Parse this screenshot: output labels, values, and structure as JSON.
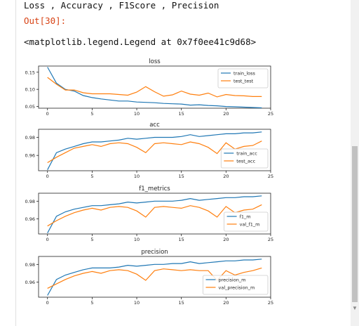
{
  "cell": {
    "markdown_text": "Loss , Accuracy , F1Score , Precision",
    "out_prompt": "Out[30]:",
    "output_text": "<matplotlib.legend.Legend at 0x7f0ee41c9d68>"
  },
  "chart_data": [
    {
      "type": "line",
      "title": "loss",
      "x": [
        0,
        1,
        2,
        3,
        4,
        5,
        6,
        7,
        8,
        9,
        10,
        11,
        12,
        13,
        14,
        15,
        16,
        17,
        18,
        19,
        20,
        21,
        22,
        23,
        24
      ],
      "series": [
        {
          "name": "train_loss",
          "color": "#1f77b4",
          "values": [
            0.165,
            0.118,
            0.1,
            0.095,
            0.082,
            0.076,
            0.072,
            0.069,
            0.066,
            0.066,
            0.063,
            0.062,
            0.061,
            0.059,
            0.058,
            0.057,
            0.054,
            0.055,
            0.053,
            0.052,
            0.05,
            0.049,
            0.048,
            0.047,
            0.046
          ]
        },
        {
          "name": "test_test",
          "color": "#ff7f0e",
          "values": [
            0.135,
            0.115,
            0.098,
            0.098,
            0.09,
            0.087,
            0.087,
            0.087,
            0.085,
            0.083,
            0.092,
            0.108,
            0.093,
            0.08,
            0.084,
            0.095,
            0.086,
            0.083,
            0.089,
            0.078,
            0.085,
            0.082,
            0.081,
            0.079,
            0.079
          ]
        }
      ],
      "ylim": [
        0.045,
        0.168
      ],
      "yticks": [
        "0.15",
        "0.10",
        "0.05"
      ],
      "ytick_values": [
        0.15,
        0.1,
        0.05
      ],
      "xticks": [
        "0",
        "5",
        "10",
        "15",
        "20",
        "25"
      ],
      "xlim": [
        -1,
        25
      ],
      "legend": "upper right"
    },
    {
      "type": "line",
      "title": "acc",
      "x": [
        0,
        1,
        2,
        3,
        4,
        5,
        6,
        7,
        8,
        9,
        10,
        11,
        12,
        13,
        14,
        15,
        16,
        17,
        18,
        19,
        20,
        21,
        22,
        23,
        24
      ],
      "series": [
        {
          "name": "train_acc",
          "color": "#1f77b4",
          "values": [
            0.944,
            0.963,
            0.967,
            0.97,
            0.973,
            0.975,
            0.975,
            0.976,
            0.977,
            0.979,
            0.978,
            0.979,
            0.98,
            0.98,
            0.98,
            0.981,
            0.983,
            0.981,
            0.982,
            0.983,
            0.984,
            0.984,
            0.985,
            0.985,
            0.986
          ]
        },
        {
          "name": "test_acc",
          "color": "#ff7f0e",
          "values": [
            0.952,
            0.958,
            0.963,
            0.968,
            0.97,
            0.972,
            0.97,
            0.973,
            0.974,
            0.973,
            0.969,
            0.963,
            0.973,
            0.974,
            0.973,
            0.972,
            0.975,
            0.973,
            0.969,
            0.962,
            0.974,
            0.967,
            0.97,
            0.971,
            0.976
          ]
        }
      ],
      "ylim": [
        0.943,
        0.989
      ],
      "yticks": [
        "0.98",
        "0.96"
      ],
      "ytick_values": [
        0.98,
        0.96
      ],
      "xticks": [
        "0",
        "5",
        "10",
        "15",
        "20",
        "25"
      ],
      "xlim": [
        -1,
        25
      ],
      "legend": "lower right"
    },
    {
      "type": "line",
      "title": "f1_metrics",
      "x": [
        0,
        1,
        2,
        3,
        4,
        5,
        6,
        7,
        8,
        9,
        10,
        11,
        12,
        13,
        14,
        15,
        16,
        17,
        18,
        19,
        20,
        21,
        22,
        23,
        24
      ],
      "series": [
        {
          "name": "f1_m",
          "color": "#1f77b4",
          "values": [
            0.944,
            0.963,
            0.968,
            0.971,
            0.973,
            0.975,
            0.975,
            0.976,
            0.977,
            0.979,
            0.978,
            0.979,
            0.98,
            0.98,
            0.98,
            0.981,
            0.983,
            0.981,
            0.982,
            0.983,
            0.984,
            0.984,
            0.985,
            0.985,
            0.986
          ]
        },
        {
          "name": "val_f1_m",
          "color": "#ff7f0e",
          "values": [
            0.952,
            0.958,
            0.963,
            0.967,
            0.97,
            0.972,
            0.97,
            0.973,
            0.974,
            0.973,
            0.969,
            0.962,
            0.973,
            0.974,
            0.973,
            0.972,
            0.975,
            0.973,
            0.969,
            0.962,
            0.974,
            0.967,
            0.97,
            0.971,
            0.976
          ]
        }
      ],
      "ylim": [
        0.943,
        0.989
      ],
      "yticks": [
        "0.98",
        "0.96"
      ],
      "ytick_values": [
        0.98,
        0.96
      ],
      "xticks": [
        "0",
        "5",
        "10",
        "15",
        "20",
        "25"
      ],
      "xlim": [
        -1,
        25
      ],
      "legend": "lower right"
    },
    {
      "type": "line",
      "title": "precision",
      "x": [
        0,
        1,
        2,
        3,
        4,
        5,
        6,
        7,
        8,
        9,
        10,
        11,
        12,
        13,
        14,
        15,
        16,
        17,
        18,
        19,
        20,
        21,
        22,
        23,
        24
      ],
      "series": [
        {
          "name": "precision_m",
          "color": "#1f77b4",
          "values": [
            0.945,
            0.963,
            0.968,
            0.971,
            0.974,
            0.976,
            0.976,
            0.976,
            0.977,
            0.979,
            0.978,
            0.979,
            0.98,
            0.98,
            0.981,
            0.981,
            0.983,
            0.981,
            0.982,
            0.983,
            0.984,
            0.984,
            0.985,
            0.985,
            0.986
          ]
        },
        {
          "name": "val_precision_m",
          "color": "#ff7f0e",
          "values": [
            0.953,
            0.958,
            0.963,
            0.967,
            0.97,
            0.972,
            0.97,
            0.973,
            0.974,
            0.973,
            0.969,
            0.962,
            0.973,
            0.975,
            0.974,
            0.973,
            0.974,
            0.973,
            0.973,
            0.962,
            0.973,
            0.968,
            0.971,
            0.973,
            0.976
          ]
        }
      ],
      "ylim": [
        0.943,
        0.989
      ],
      "yticks": [
        "0.98",
        "0.96"
      ],
      "ytick_values": [
        0.98,
        0.96
      ],
      "xticks": [
        "0",
        "5",
        "10",
        "15",
        "20",
        "25"
      ],
      "xlim": [
        -1,
        25
      ],
      "legend": "lower right"
    }
  ]
}
